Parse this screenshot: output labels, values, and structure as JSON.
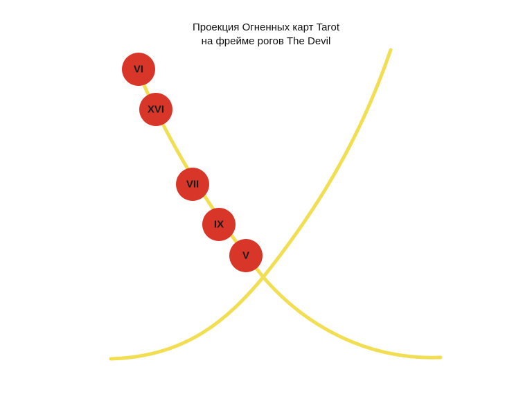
{
  "title": {
    "line1": "Проекция Огненных карт Tarot",
    "line2": "на фрейме рогов The Devil"
  },
  "colors": {
    "curve": "#F2DE52",
    "node_fill": "#D9362A",
    "node_text": "#1a1a1a"
  },
  "nodes": [
    {
      "label": "VI"
    },
    {
      "label": "XVI"
    },
    {
      "label": "VII"
    },
    {
      "label": "IX"
    },
    {
      "label": "V"
    }
  ]
}
